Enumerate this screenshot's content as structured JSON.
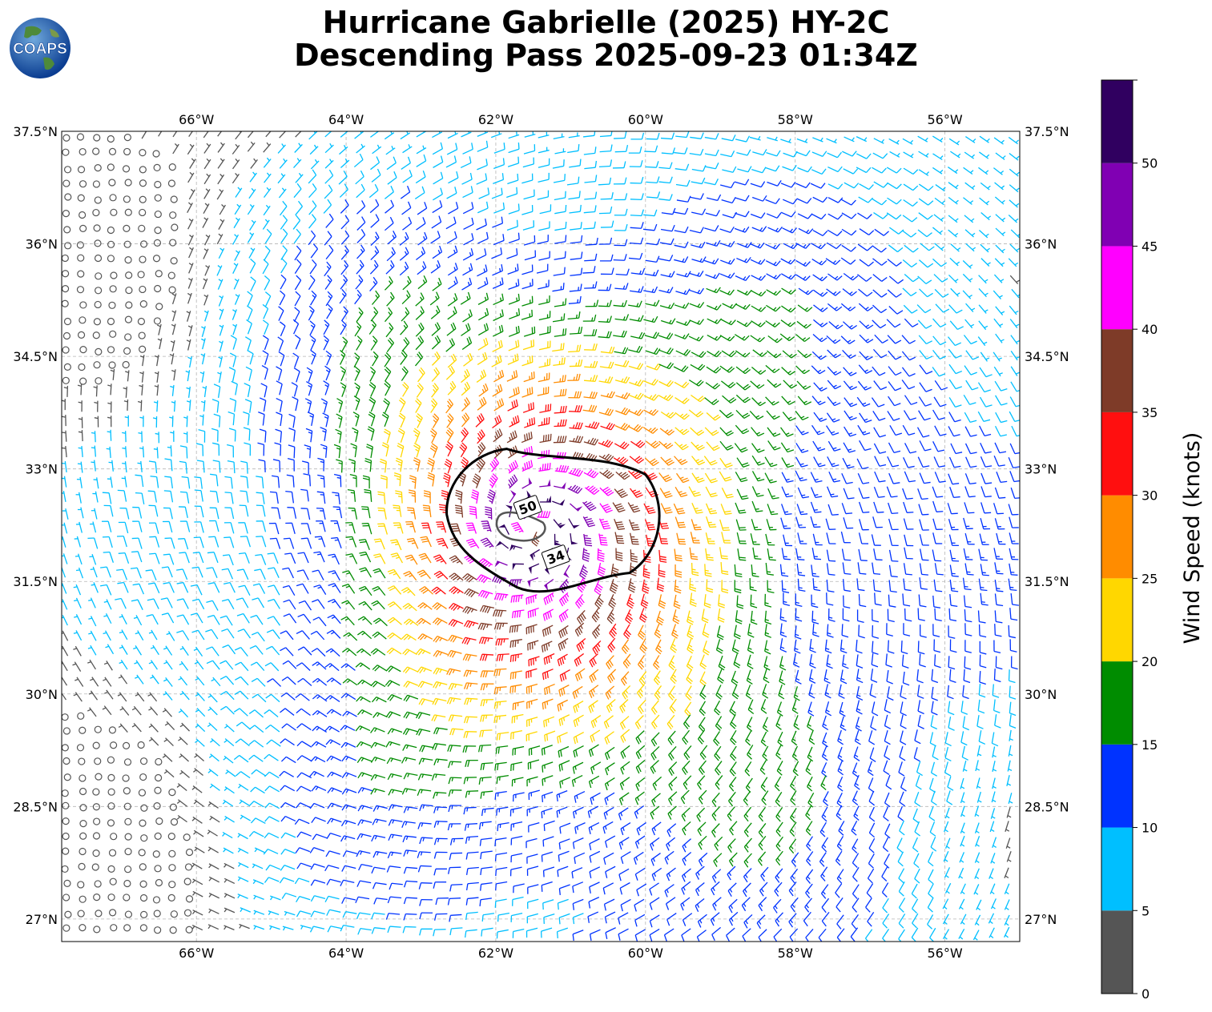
{
  "title": {
    "line1": "Hurricane Gabrielle (2025) HY-2C",
    "line2": "Descending Pass 2025-09-23 01:34Z"
  },
  "logo": {
    "text": "COAPS",
    "icon": "globe-logo-icon"
  },
  "map": {
    "lon_range": [
      -67.8,
      -55.0
    ],
    "lat_range": [
      26.7,
      37.5
    ],
    "grid": true,
    "lon_ticks": [
      {
        "value": -66,
        "label": "66°W"
      },
      {
        "value": -64,
        "label": "64°W"
      },
      {
        "value": -62,
        "label": "62°W"
      },
      {
        "value": -60,
        "label": "60°W"
      },
      {
        "value": -58,
        "label": "58°W"
      },
      {
        "value": -56,
        "label": "56°W"
      }
    ],
    "lat_ticks": [
      {
        "value": 37.5,
        "label": "37.5°N"
      },
      {
        "value": 36.0,
        "label": "36°N"
      },
      {
        "value": 34.5,
        "label": "34.5°N"
      },
      {
        "value": 33.0,
        "label": "33°N"
      },
      {
        "value": 31.5,
        "label": "31.5°N"
      },
      {
        "value": 30.0,
        "label": "30°N"
      },
      {
        "value": 28.5,
        "label": "28.5°N"
      },
      {
        "value": 27.0,
        "label": "27°N"
      }
    ],
    "storm_center": {
      "lon": -61.5,
      "lat": 32.2
    },
    "contours": [
      {
        "label": "50",
        "color": "#555555"
      },
      {
        "label": "34",
        "color": "#000000"
      }
    ]
  },
  "colorbar": {
    "label": "Wind Speed (knots)",
    "bins": [
      {
        "min": 0,
        "max": 5,
        "color": "#555555"
      },
      {
        "min": 5,
        "max": 10,
        "color": "#00bfff"
      },
      {
        "min": 10,
        "max": 15,
        "color": "#0033ff"
      },
      {
        "min": 15,
        "max": 20,
        "color": "#008c00"
      },
      {
        "min": 20,
        "max": 25,
        "color": "#ffd700"
      },
      {
        "min": 25,
        "max": 30,
        "color": "#ff8c00"
      },
      {
        "min": 30,
        "max": 35,
        "color": "#ff0f0f"
      },
      {
        "min": 35,
        "max": 40,
        "color": "#7e3b28"
      },
      {
        "min": 40,
        "max": 45,
        "color": "#ff00ff"
      },
      {
        "min": 45,
        "max": 50,
        "color": "#8000b3"
      },
      {
        "min": 50,
        "max": 55,
        "color": "#300060"
      }
    ],
    "tick_labels": [
      "0",
      "5",
      "10",
      "15",
      "20",
      "25",
      "30",
      "35",
      "40",
      "45",
      "50"
    ]
  }
}
